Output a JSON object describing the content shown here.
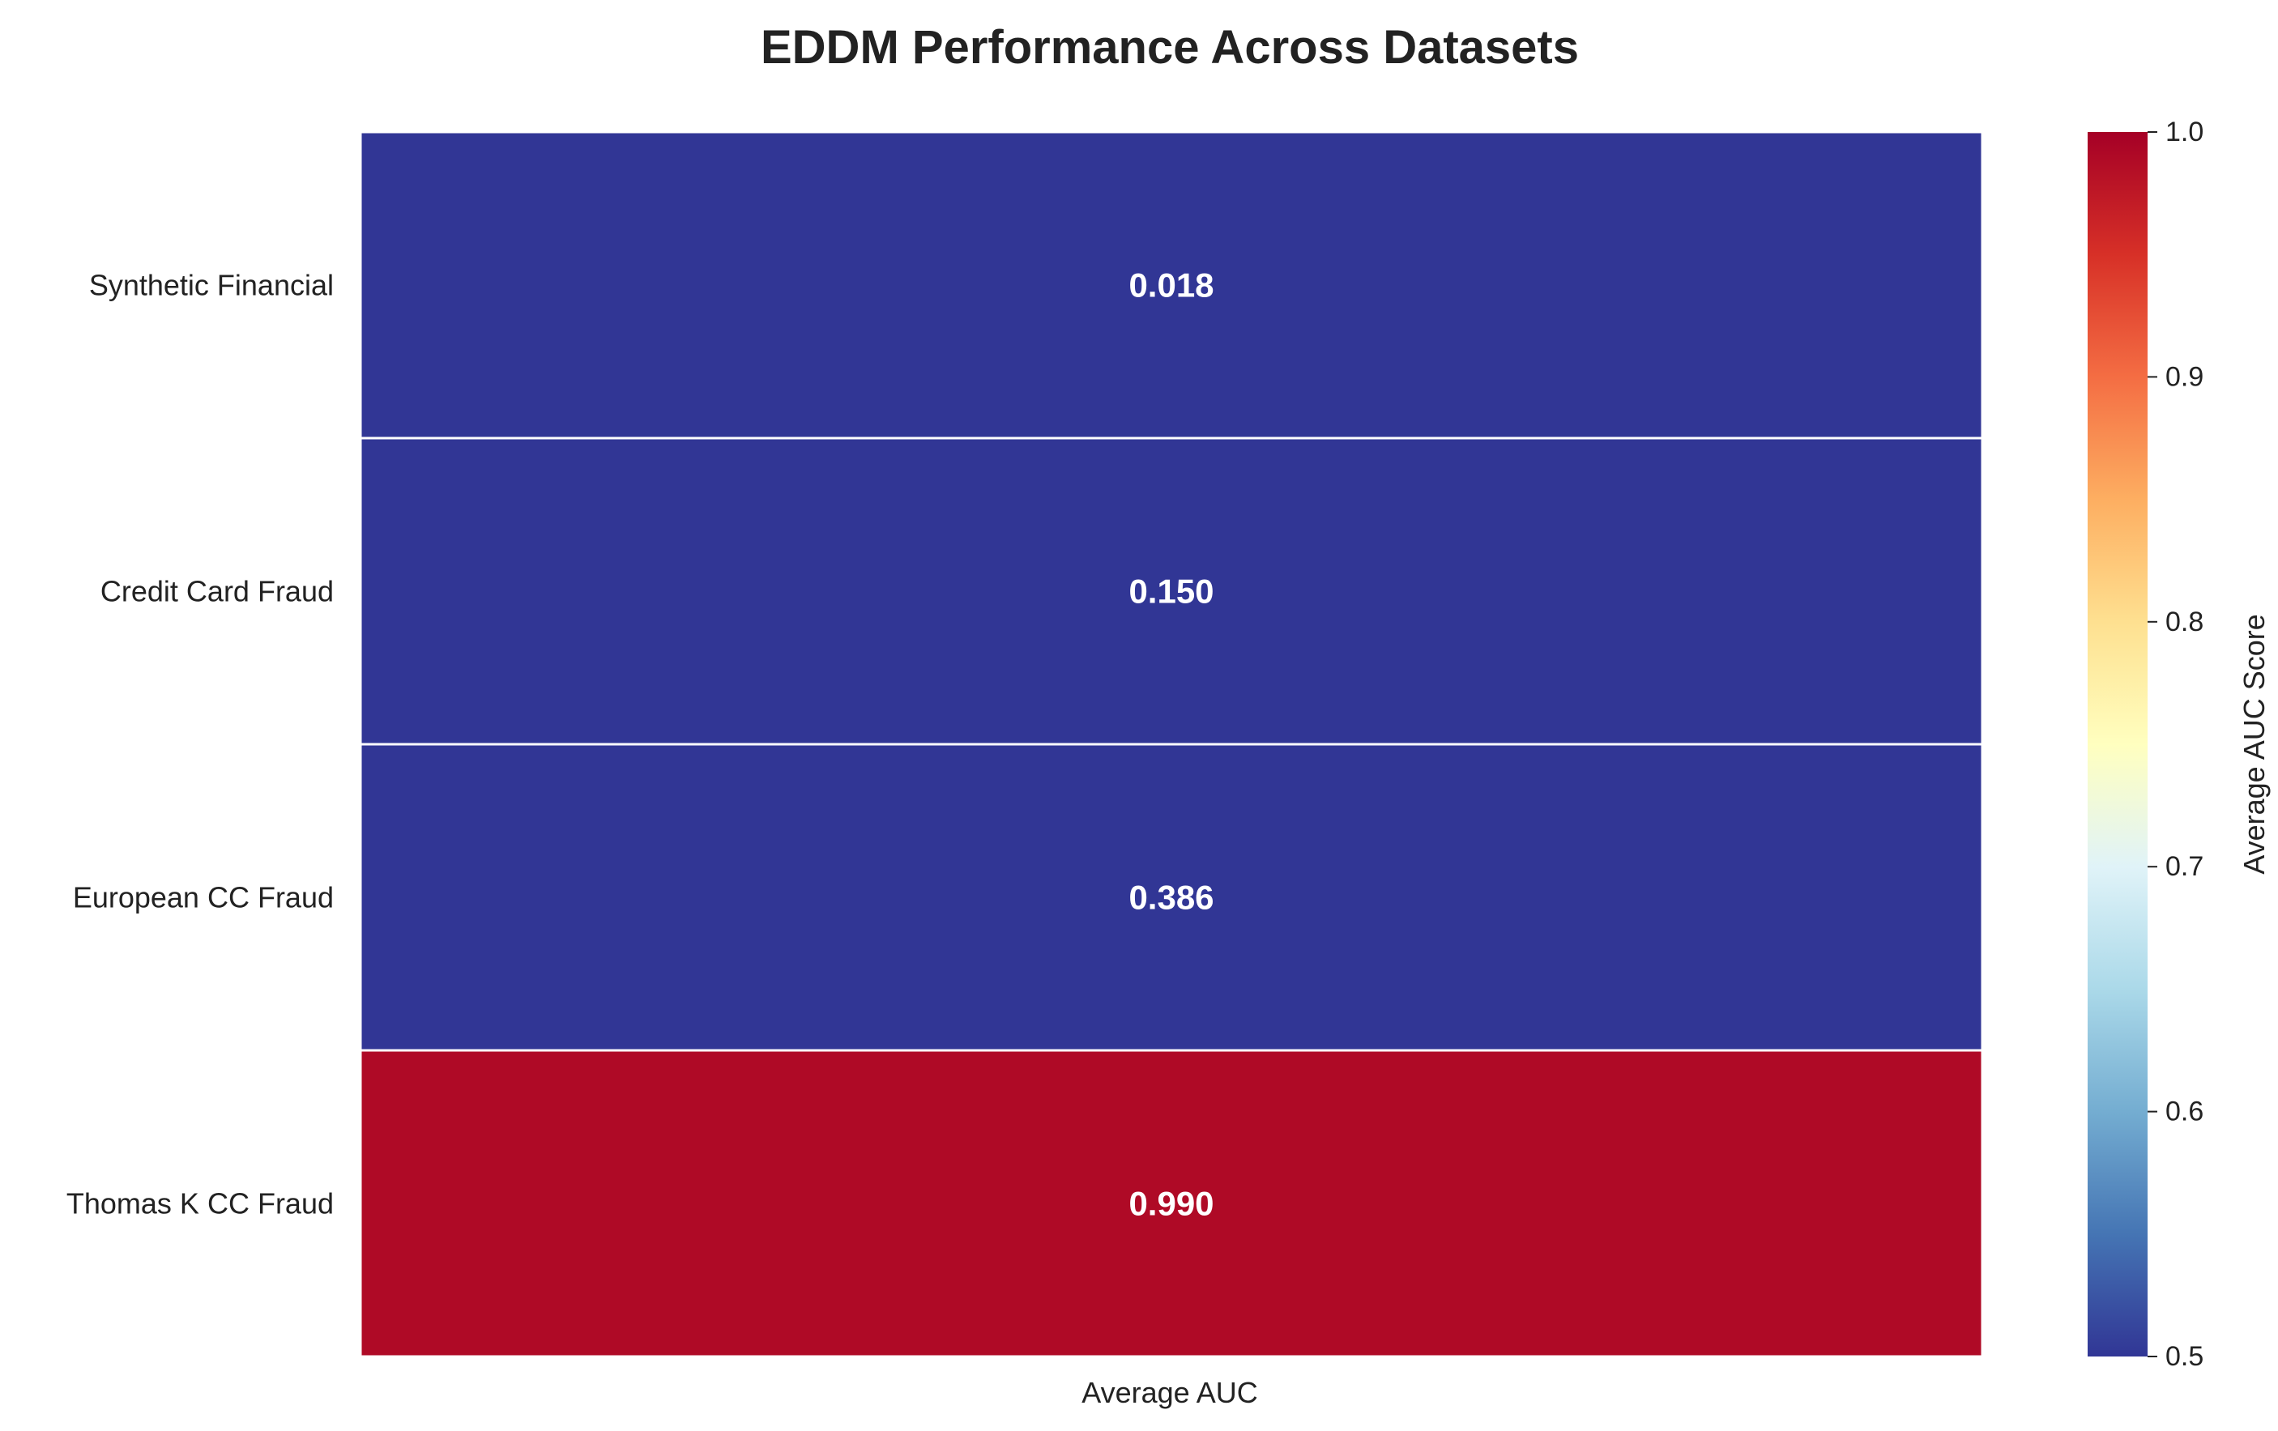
{
  "chart_data": {
    "type": "heatmap",
    "title": "EDDM Performance Across Datasets",
    "rows": [
      "Synthetic Financial",
      "Credit Card Fraud",
      "European CC Fraud",
      "Thomas K CC Fraud"
    ],
    "columns": [
      "Average AUC"
    ],
    "values": [
      0.018,
      0.15,
      0.386,
      0.99
    ],
    "value_labels": [
      "0.018",
      "0.150",
      "0.386",
      "0.990"
    ],
    "colormap": "RdYlBu_r",
    "colorbar": {
      "label": "Average AUC Score",
      "range": [
        0.5,
        1.0
      ],
      "ticks": [
        "0.5",
        "0.6",
        "0.7",
        "0.8",
        "0.9",
        "1.0"
      ],
      "tick_values": [
        0.5,
        0.6,
        0.7,
        0.8,
        0.9,
        1.0
      ]
    },
    "colors": {
      "low": "#313695",
      "high": "#a50026",
      "cell_border": "#ffffff"
    }
  }
}
